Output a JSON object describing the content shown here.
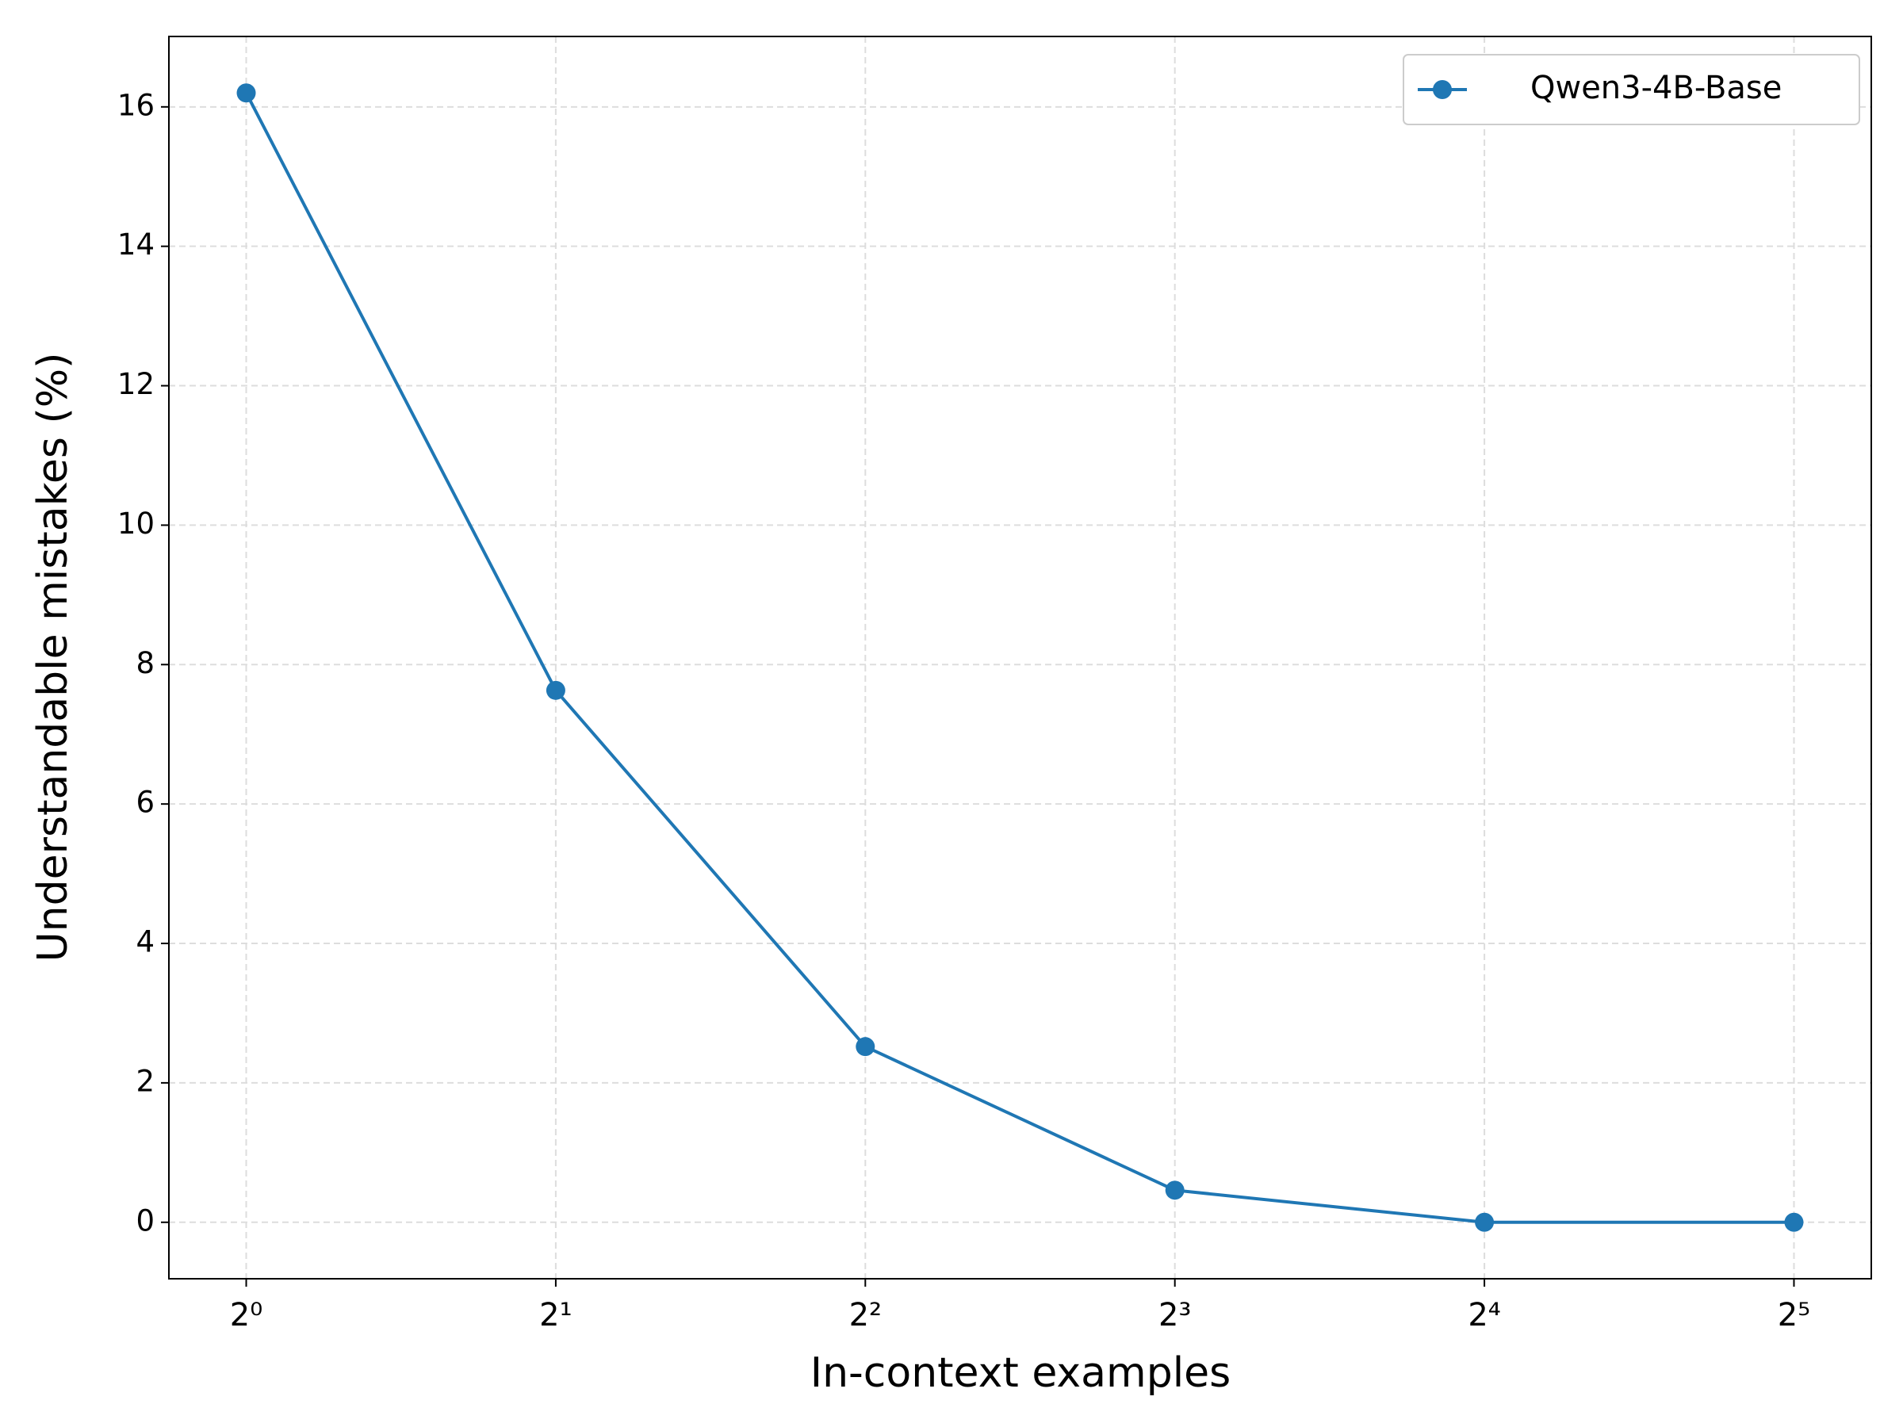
{
  "chart_data": {
    "type": "line",
    "x_label": "In-context examples",
    "y_label": "Understandable mistakes (%)",
    "x": [
      1,
      2,
      4,
      8,
      16,
      32
    ],
    "series": [
      {
        "name": "Qwen3-4B-Base",
        "color": "#1f77b4",
        "values": [
          16.2,
          7.63,
          2.52,
          0.46,
          0,
          0
        ]
      }
    ],
    "x_scale": "log",
    "xlim": [
      0.841,
      38.05
    ],
    "xticks": [
      {
        "value": 1,
        "label": "2⁰"
      },
      {
        "value": 2,
        "label": "2¹"
      },
      {
        "value": 4,
        "label": "2²"
      },
      {
        "value": 8,
        "label": "2³"
      },
      {
        "value": 16,
        "label": "2⁴"
      },
      {
        "value": 32,
        "label": "2⁵"
      }
    ],
    "ylim": [
      -0.81,
      17.01
    ],
    "yticks": [
      0,
      2,
      4,
      6,
      8,
      10,
      12,
      14,
      16
    ],
    "grid": true,
    "legend": "upper right"
  }
}
